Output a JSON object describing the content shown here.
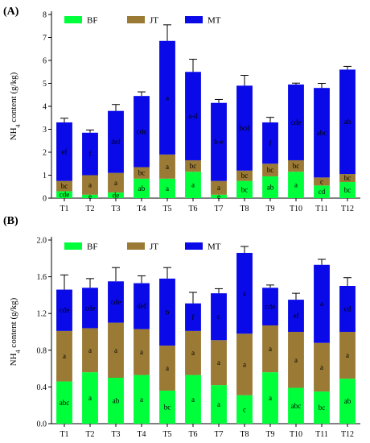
{
  "colors": {
    "BF": "#00ff3b",
    "JT": "#9a7a34",
    "MT": "#0a0ae8"
  },
  "chart_data": [
    {
      "panel": "(A)",
      "type": "bar",
      "stacked": true,
      "ylabel": "NH4 content (g/kg)",
      "ylabel_main": "NH",
      "ylabel_sub": "4",
      "ylabel_tail": " content (g/kg)",
      "ylim": [
        0,
        8
      ],
      "yticks": [
        0,
        1,
        2,
        3,
        4,
        5,
        6,
        7,
        8
      ],
      "ytick_labels": [
        "0",
        "1",
        "2",
        "3",
        "4",
        "5",
        "6",
        "7",
        "8"
      ],
      "legend_position": "top",
      "categories": [
        "T1",
        "T2",
        "T3",
        "T4",
        "T5",
        "T6",
        "T7",
        "T8",
        "T9",
        "T10",
        "T11",
        "T12"
      ],
      "series": [
        {
          "name": "BF",
          "values": [
            0.3,
            0.15,
            0.25,
            0.85,
            0.85,
            1.15,
            0.15,
            0.75,
            0.95,
            1.15,
            0.55,
            0.7
          ],
          "errors": [
            0.05,
            0.05,
            0.05,
            0.08,
            0.15,
            0.1,
            0.03,
            0.08,
            0.08,
            0.15,
            0.08,
            0.08
          ],
          "letters": [
            "cde",
            "e",
            "de",
            "ab",
            "a",
            "a",
            "e",
            "bc",
            "ab",
            "a",
            "cd",
            "bc"
          ]
        },
        {
          "name": "JT",
          "values": [
            0.45,
            0.85,
            0.85,
            0.5,
            1.05,
            0.5,
            0.6,
            0.45,
            0.55,
            0.5,
            0.35,
            0.35
          ],
          "errors": [
            0.05,
            0.1,
            0.25,
            0.08,
            0.2,
            0.15,
            0.1,
            0.1,
            0.08,
            0.1,
            0.15,
            0.1
          ],
          "letters": [
            "bc",
            "a",
            "a",
            "bc",
            "a",
            "bc",
            "a",
            "bc",
            "bc",
            "bc",
            "c",
            "bc"
          ]
        },
        {
          "name": "MT",
          "values": [
            2.55,
            1.85,
            2.7,
            3.1,
            4.95,
            3.85,
            3.4,
            3.7,
            1.8,
            3.3,
            3.9,
            4.55
          ],
          "errors": [
            0.18,
            0.12,
            0.28,
            0.18,
            0.7,
            0.55,
            0.15,
            0.45,
            0.22,
            0.06,
            0.2,
            0.14
          ],
          "letters": [
            "ef",
            "f",
            "def",
            "cde",
            "a",
            "a-d",
            "b-e",
            "bcd",
            "f",
            "cde",
            "abc",
            "ab"
          ]
        }
      ]
    },
    {
      "panel": "(B)",
      "type": "bar",
      "stacked": true,
      "ylabel": "NH4 content (g/kg)",
      "ylabel_main": "NH",
      "ylabel_sub": "4",
      "ylabel_tail": " content (g/kg)",
      "ylim": [
        0,
        2
      ],
      "yticks": [
        0,
        0.4,
        0.8,
        1.2,
        1.6,
        2.0
      ],
      "ytick_labels": [
        "0.0",
        "0.4",
        "0.8",
        "1.2",
        "1.6",
        "2.0"
      ],
      "legend_position": "top",
      "categories": [
        "T1",
        "T2",
        "T3",
        "T4",
        "T5",
        "T6",
        "T7",
        "T8",
        "T9",
        "T10",
        "T11",
        "T12"
      ],
      "series": [
        {
          "name": "BF",
          "values": [
            0.46,
            0.56,
            0.5,
            0.53,
            0.36,
            0.53,
            0.42,
            0.31,
            0.56,
            0.39,
            0.35,
            0.49
          ],
          "errors": [
            0.02,
            0.1,
            0.05,
            0.07,
            0.08,
            0.07,
            0.04,
            0.04,
            0.1,
            0.05,
            0.1,
            0.04
          ],
          "letters": [
            "abc",
            "a",
            "ab",
            "a",
            "bc",
            "a",
            "a",
            "c",
            "a",
            "abc",
            "bc",
            "ab"
          ]
        },
        {
          "name": "JT",
          "values": [
            0.55,
            0.48,
            0.6,
            0.5,
            0.49,
            0.48,
            0.49,
            0.67,
            0.51,
            0.61,
            0.53,
            0.51
          ],
          "errors": [
            0.03,
            0.02,
            0.05,
            0.03,
            0.03,
            0.06,
            0.04,
            0.04,
            0.02,
            0.02,
            0.05,
            0.04
          ],
          "letters": [
            "a",
            "a",
            "a",
            "a",
            "a",
            "a",
            "a",
            "a",
            "a",
            "a",
            "a",
            "a"
          ]
        },
        {
          "name": "MT",
          "values": [
            0.45,
            0.44,
            0.45,
            0.5,
            0.73,
            0.3,
            0.51,
            0.88,
            0.41,
            0.35,
            0.85,
            0.5
          ],
          "errors": [
            0.16,
            0.1,
            0.15,
            0.08,
            0.12,
            0.12,
            0.05,
            0.07,
            0.03,
            0.07,
            0.06,
            0.09
          ],
          "letters": [
            "cde",
            "cde",
            "cde",
            "def",
            "b",
            "f",
            "c",
            "a",
            "cde",
            "ef",
            "a",
            "cd"
          ]
        }
      ]
    }
  ]
}
